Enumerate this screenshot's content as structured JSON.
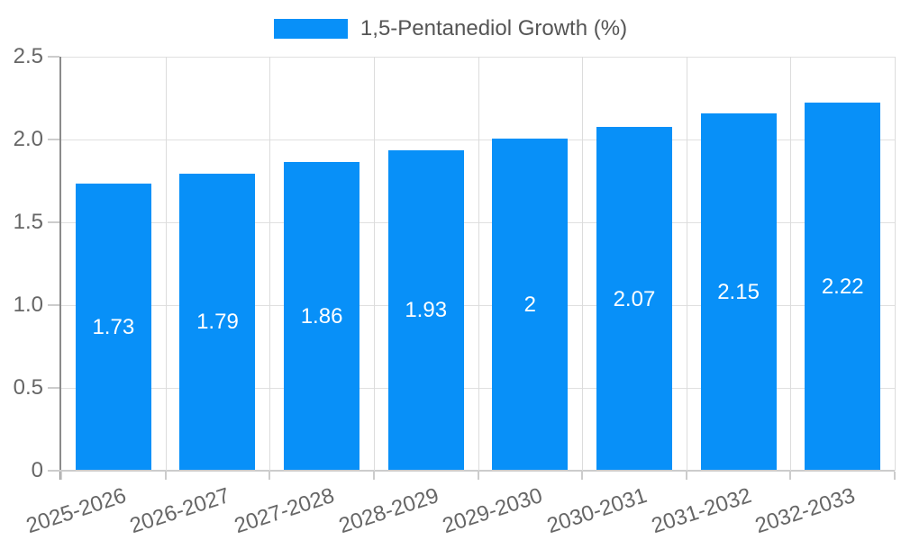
{
  "legend": {
    "label": "1,5-Pentanediol Growth (%)",
    "swatch_color": "#0890f8"
  },
  "chart_data": {
    "type": "bar",
    "title": "",
    "series_name": "1,5-Pentanediol Growth (%)",
    "categories": [
      "2025-2026",
      "2026-2027",
      "2027-2028",
      "2028-2029",
      "2029-2030",
      "2030-2031",
      "2031-2032",
      "2032-2033"
    ],
    "values": [
      1.73,
      1.79,
      1.86,
      1.93,
      2,
      2.07,
      2.15,
      2.22
    ],
    "bar_labels": [
      "1.73",
      "1.79",
      "1.86",
      "1.93",
      "2",
      "2.07",
      "2.15",
      "2.22"
    ],
    "xlabel": "",
    "ylabel": "",
    "ylim": [
      0,
      2.5
    ],
    "ytick_labels": [
      "0",
      "0.5",
      "1.0",
      "1.5",
      "2.0",
      "2.5"
    ],
    "ytick_values": [
      0,
      0.5,
      1.0,
      1.5,
      2.0,
      2.5
    ],
    "grid": true,
    "legend_position": "top",
    "x_label_rotation_deg": -18
  },
  "colors": {
    "bar": "#0890f8",
    "bar_label_text": "#ffffff",
    "axis_text": "#666666",
    "legend_text": "#555555",
    "y_axis_line": "#8a8a8a",
    "x_axis_line": "#cccccc",
    "gridline": "#dcdcdc",
    "background": "#ffffff"
  }
}
